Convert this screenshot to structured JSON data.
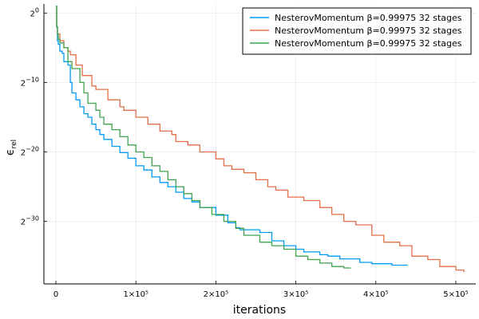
{
  "chart_data": {
    "type": "line",
    "title": "",
    "xlabel": "iterations",
    "ylabel": "ϵ",
    "ylabel_subscript": "rel",
    "x_scale": "linear",
    "y_scale": "log2",
    "xlim": [
      -15000,
      525000
    ],
    "ylim_log2": [
      -39,
      1.3
    ],
    "x_ticks": [
      {
        "value": 0,
        "label": "0"
      },
      {
        "value": 100000,
        "label": "1×10⁵"
      },
      {
        "value": 200000,
        "label": "2×10⁵"
      },
      {
        "value": 300000,
        "label": "3×10⁵"
      },
      {
        "value": 400000,
        "label": "4×10⁵"
      },
      {
        "value": 500000,
        "label": "5×10⁵"
      }
    ],
    "y_ticks": [
      {
        "value_log2": 0,
        "label_base": "2",
        "label_exp": "0"
      },
      {
        "value_log2": -10,
        "label_base": "2",
        "label_exp": "−10"
      },
      {
        "value_log2": -20,
        "label_base": "2",
        "label_exp": "−20"
      },
      {
        "value_log2": -30,
        "label_base": "2",
        "label_exp": "−30"
      }
    ],
    "grid": true,
    "legend_position": "top-right",
    "series": [
      {
        "name": "NesterovMomentum β=0.99975 32 stages",
        "color": "#009af9",
        "x": [
          0,
          1000,
          2000,
          3000,
          5000,
          8000,
          10000,
          15000,
          18000,
          20000,
          25000,
          30000,
          35000,
          40000,
          45000,
          50000,
          55000,
          60000,
          70000,
          80000,
          90000,
          100000,
          110000,
          120000,
          130000,
          140000,
          150000,
          160000,
          170000,
          180000,
          200000,
          215000,
          225000,
          230000,
          255000,
          270000,
          285000,
          300000,
          310000,
          330000,
          340000,
          355000,
          380000,
          395000,
          420000,
          440000
        ],
        "y_log2": [
          1.0,
          -2.0,
          -4.0,
          -4.5,
          -5.5,
          -5.8,
          -7.0,
          -7.5,
          -10.0,
          -11.5,
          -12.5,
          -13.5,
          -14.5,
          -15.0,
          -16.0,
          -16.8,
          -17.5,
          -18.2,
          -19.2,
          -20.1,
          -20.9,
          -22.0,
          -22.6,
          -23.6,
          -24.4,
          -25.0,
          -25.8,
          -26.7,
          -27.2,
          -28.0,
          -29.1,
          -30.2,
          -30.9,
          -31.2,
          -31.6,
          -32.8,
          -33.5,
          -34.0,
          -34.4,
          -34.8,
          -35.0,
          -35.4,
          -35.9,
          -36.1,
          -36.3,
          -36.3
        ]
      },
      {
        "name": "NesterovMomentum β=0.99975 32 stages",
        "color": "#e26f46",
        "x": [
          0,
          1000,
          2000,
          5000,
          10000,
          15000,
          18000,
          25000,
          33000,
          45000,
          50000,
          65000,
          80000,
          85000,
          100000,
          115000,
          130000,
          145000,
          150000,
          165000,
          180000,
          200000,
          210000,
          220000,
          235000,
          250000,
          265000,
          275000,
          290000,
          310000,
          330000,
          345000,
          360000,
          375000,
          395000,
          410000,
          430000,
          445000,
          465000,
          480000,
          500000,
          510000
        ],
        "y_log2": [
          1.0,
          -2.0,
          -3.0,
          -4.0,
          -5.0,
          -5.5,
          -6.0,
          -7.5,
          -9.0,
          -10.5,
          -11.0,
          -12.5,
          -13.5,
          -14.0,
          -15.0,
          -16.0,
          -17.0,
          -17.5,
          -18.5,
          -19.0,
          -20.0,
          -21.0,
          -22.0,
          -22.5,
          -23.0,
          -24.0,
          -25.0,
          -25.5,
          -26.5,
          -27.0,
          -28.0,
          -29.0,
          -30.0,
          -30.5,
          -32.0,
          -33.0,
          -33.5,
          -35.0,
          -35.5,
          -36.5,
          -37.0,
          -37.3
        ]
      },
      {
        "name": "NesterovMomentum β=0.99975 32 stages",
        "color": "#3ea44e",
        "x": [
          0,
          1000,
          2000,
          3000,
          5000,
          10000,
          15000,
          20000,
          30000,
          35000,
          40000,
          50000,
          55000,
          60000,
          70000,
          80000,
          90000,
          100000,
          110000,
          120000,
          130000,
          140000,
          150000,
          160000,
          170000,
          180000,
          195000,
          210000,
          225000,
          235000,
          255000,
          270000,
          285000,
          300000,
          315000,
          330000,
          345000,
          360000,
          368000
        ],
        "y_log2": [
          1.0,
          -2.0,
          -3.0,
          -3.8,
          -4.3,
          -5.0,
          -7.0,
          -8.0,
          -10.0,
          -11.5,
          -13.0,
          -14.0,
          -15.0,
          -16.0,
          -16.8,
          -17.8,
          -19.0,
          -20.0,
          -20.8,
          -22.0,
          -22.8,
          -24.0,
          -25.0,
          -26.0,
          -27.0,
          -28.0,
          -29.0,
          -30.0,
          -31.0,
          -32.0,
          -33.0,
          -33.5,
          -34.0,
          -35.0,
          -35.5,
          -36.0,
          -36.5,
          -36.7,
          -36.8
        ]
      }
    ]
  }
}
